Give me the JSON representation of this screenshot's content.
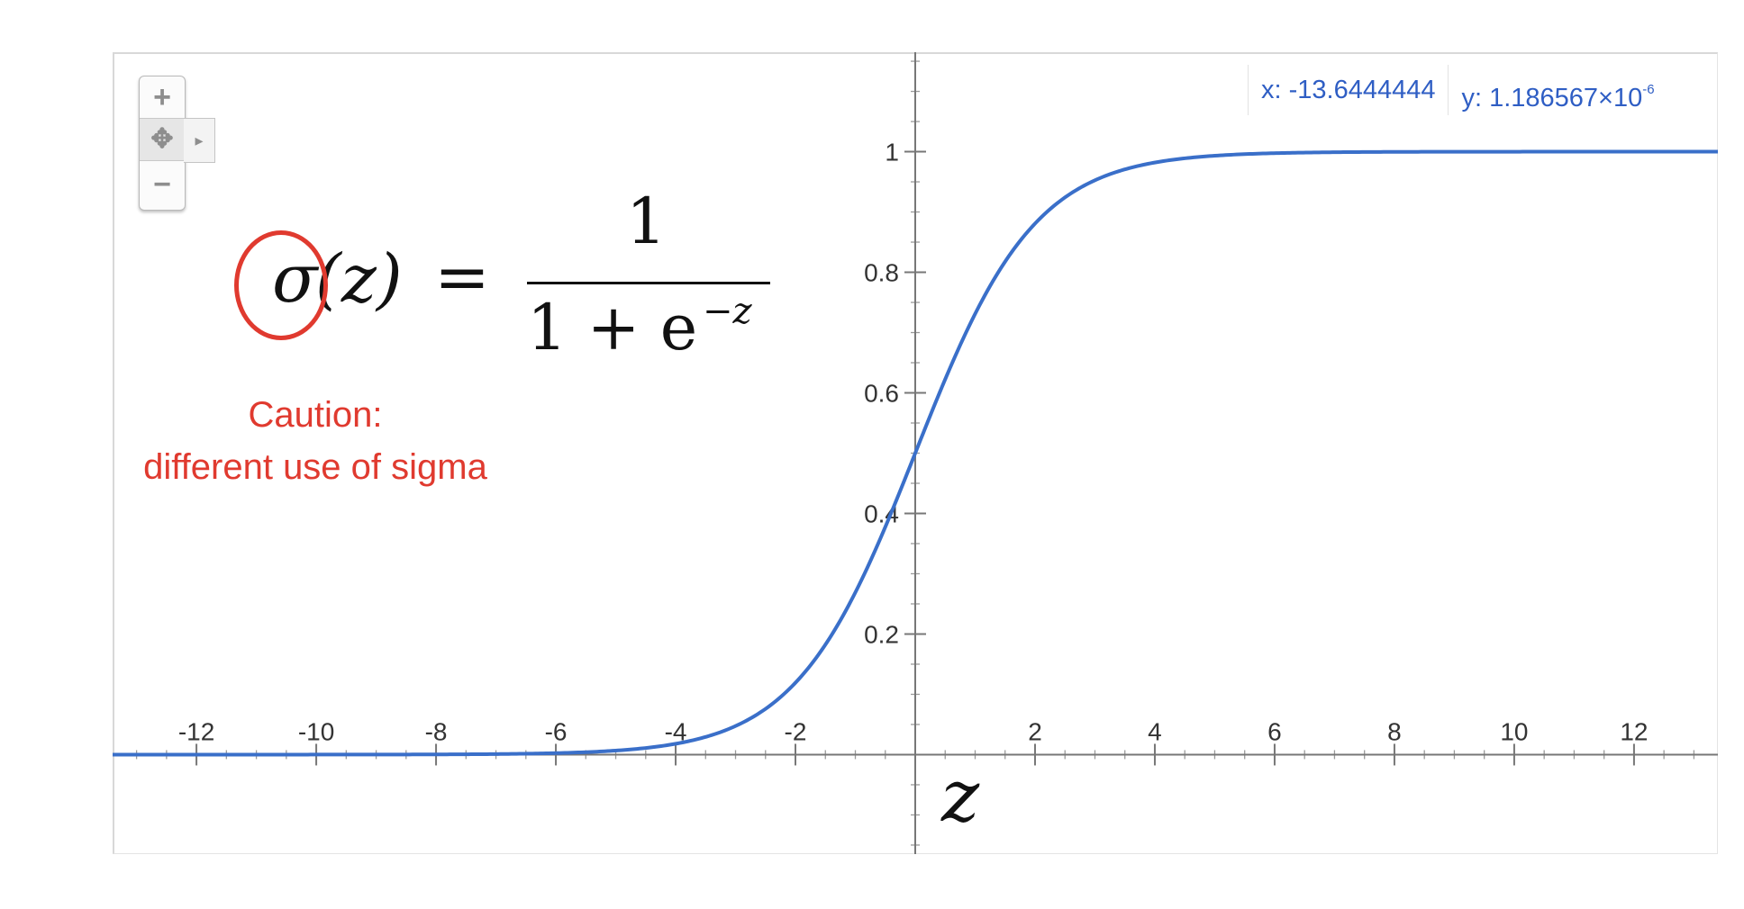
{
  "readout": {
    "x_text": "x: -13.6444444",
    "y_text": "y: 1.186567×10",
    "y_exponent": "-6"
  },
  "zoom": {
    "zoom_in_icon": "+",
    "pan_icon": "✥",
    "zoom_out_icon": "−",
    "expand_icon": "▸"
  },
  "formula": {
    "lhs_sigma": "σ",
    "lhs_arg": "(z)",
    "equals": "=",
    "numerator": "1",
    "denominator_base": "1 + e",
    "denominator_exponent": "−z"
  },
  "annotation": {
    "line1": "Caution:",
    "line2": "different use of sigma"
  },
  "axis_label": "z",
  "colors": {
    "curve": "#3a6fc9",
    "annotation": "#e03a2f",
    "readout": "#2f5ec4"
  },
  "chart_data": {
    "type": "line",
    "title": "",
    "xlabel": "z",
    "ylabel": "",
    "xlim": [
      -13.4,
      13.4
    ],
    "ylim": [
      -0.165,
      1.165
    ],
    "grid": false,
    "x_ticks": [
      -12,
      -10,
      -8,
      -6,
      -4,
      -2,
      2,
      4,
      6,
      8,
      10,
      12
    ],
    "x_tick_labels": [
      "-12",
      "-10",
      "-8",
      "-6",
      "-4",
      "-2",
      "2",
      "4",
      "6",
      "8",
      "10",
      "12"
    ],
    "y_ticks": [
      0.2,
      0.4,
      0.6,
      0.8,
      1
    ],
    "y_tick_labels": [
      "0.2",
      "0.4",
      "0.6",
      "0.8",
      "1"
    ],
    "series": [
      {
        "function": "sigmoid",
        "x": [
          -13.4,
          -12,
          -10,
          -8,
          -6,
          -5,
          -4,
          -3,
          -2,
          -1.5,
          -1,
          -0.5,
          0,
          0.5,
          1,
          1.5,
          2,
          3,
          4,
          5,
          6,
          8,
          10,
          12,
          13.4
        ],
        "y": [
          0.0,
          1e-05,
          5e-05,
          0.0003,
          0.0025,
          0.0067,
          0.018,
          0.047,
          0.119,
          0.182,
          0.269,
          0.378,
          0.5,
          0.622,
          0.731,
          0.818,
          0.881,
          0.953,
          0.982,
          0.9933,
          0.9975,
          0.9997,
          0.99995,
          0.99999,
          1.0
        ]
      }
    ]
  }
}
